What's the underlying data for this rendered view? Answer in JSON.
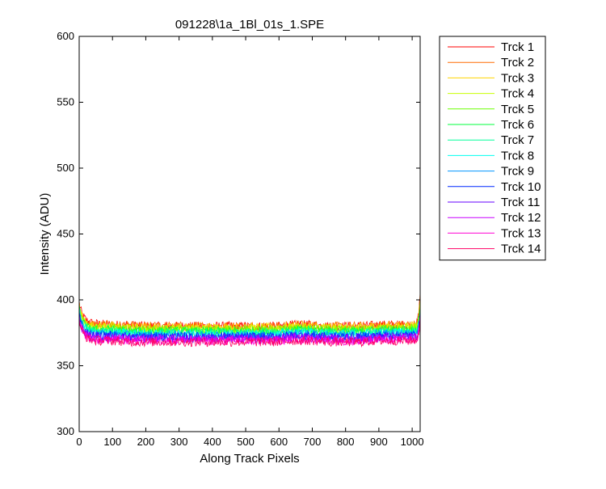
{
  "chart_data": {
    "type": "line",
    "title": "091228\\1a_1Bl_01s_1.SPE",
    "xlabel": "Along Track Pixels",
    "ylabel": "Intensity (ADU)",
    "xlim": [
      0,
      1024
    ],
    "ylim": [
      300,
      600
    ],
    "xticks": [
      0,
      100,
      200,
      300,
      400,
      500,
      600,
      700,
      800,
      900,
      1000
    ],
    "yticks": [
      300,
      350,
      400,
      450,
      500,
      550,
      600
    ],
    "grid": false,
    "legend_position": "outside-right",
    "x": [
      0,
      5,
      10,
      20,
      30,
      50,
      100,
      150,
      200,
      250,
      300,
      350,
      400,
      450,
      500,
      550,
      600,
      650,
      700,
      750,
      800,
      850,
      900,
      950,
      1000,
      1015,
      1020,
      1024
    ],
    "series": [
      {
        "name": "Trck 1",
        "color": "#ff0000",
        "values": [
          398,
          392,
          388,
          385,
          383,
          382,
          381,
          381,
          380,
          380,
          380,
          380,
          380,
          380,
          380,
          380,
          380,
          381,
          381,
          380,
          380,
          380,
          381,
          381,
          381,
          382,
          390,
          404
        ]
      },
      {
        "name": "Trck 2",
        "color": "#ff6a00",
        "values": [
          397,
          391,
          387,
          384,
          382,
          381,
          381,
          380,
          380,
          380,
          380,
          380,
          380,
          380,
          380,
          380,
          380,
          381,
          381,
          380,
          380,
          380,
          381,
          381,
          381,
          382,
          389,
          403
        ]
      },
      {
        "name": "Trck 3",
        "color": "#ffd200",
        "values": [
          396,
          390,
          386,
          383,
          381,
          380,
          380,
          379,
          379,
          379,
          379,
          379,
          379,
          379,
          379,
          379,
          379,
          380,
          380,
          379,
          379,
          379,
          380,
          380,
          380,
          381,
          387,
          400
        ]
      },
      {
        "name": "Trck 4",
        "color": "#c8ff00",
        "values": [
          395,
          389,
          385,
          382,
          380,
          379,
          379,
          378,
          378,
          378,
          378,
          378,
          378,
          378,
          378,
          378,
          378,
          379,
          379,
          378,
          378,
          378,
          379,
          379,
          379,
          380,
          386,
          398
        ]
      },
      {
        "name": "Trck 5",
        "color": "#6aff00",
        "values": [
          394,
          388,
          384,
          381,
          379,
          378,
          378,
          377,
          377,
          377,
          377,
          377,
          377,
          377,
          377,
          377,
          377,
          378,
          378,
          377,
          377,
          377,
          378,
          378,
          378,
          379,
          385,
          396
        ]
      },
      {
        "name": "Trck 6",
        "color": "#00ff3c",
        "values": [
          393,
          387,
          383,
          380,
          378,
          377,
          377,
          376,
          376,
          376,
          376,
          376,
          376,
          376,
          376,
          376,
          376,
          377,
          377,
          376,
          376,
          376,
          377,
          377,
          377,
          378,
          384,
          394
        ]
      },
      {
        "name": "Trck 7",
        "color": "#00ff9a",
        "values": [
          392,
          386,
          382,
          379,
          377,
          376,
          376,
          375,
          375,
          375,
          375,
          375,
          375,
          375,
          375,
          375,
          375,
          376,
          376,
          375,
          375,
          375,
          376,
          376,
          376,
          377,
          383,
          392
        ]
      },
      {
        "name": "Trck 8",
        "color": "#00fff0",
        "values": [
          391,
          385,
          381,
          378,
          376,
          375,
          375,
          374,
          374,
          374,
          374,
          374,
          374,
          374,
          374,
          374,
          374,
          375,
          375,
          374,
          374,
          374,
          375,
          375,
          375,
          376,
          382,
          390
        ]
      },
      {
        "name": "Trck 9",
        "color": "#0096ff",
        "values": [
          390,
          384,
          380,
          377,
          375,
          374,
          374,
          373,
          373,
          373,
          373,
          373,
          373,
          373,
          373,
          373,
          373,
          374,
          374,
          373,
          373,
          373,
          374,
          374,
          374,
          375,
          381,
          389
        ]
      },
      {
        "name": "Trck 10",
        "color": "#0028ff",
        "values": [
          389,
          383,
          379,
          376,
          374,
          373,
          373,
          372,
          372,
          372,
          372,
          372,
          372,
          372,
          372,
          372,
          372,
          373,
          373,
          372,
          372,
          372,
          373,
          373,
          373,
          374,
          380,
          388
        ]
      },
      {
        "name": "Trck 11",
        "color": "#6400ff",
        "values": [
          388,
          382,
          378,
          375,
          373,
          372,
          372,
          371,
          371,
          371,
          371,
          371,
          371,
          371,
          371,
          371,
          371,
          372,
          372,
          371,
          371,
          371,
          372,
          372,
          372,
          373,
          379,
          387
        ]
      },
      {
        "name": "Trck 12",
        "color": "#c800ff",
        "values": [
          387,
          381,
          377,
          374,
          372,
          371,
          371,
          370,
          370,
          370,
          370,
          370,
          370,
          370,
          370,
          370,
          370,
          371,
          371,
          370,
          370,
          370,
          371,
          371,
          371,
          372,
          378,
          386
        ]
      },
      {
        "name": "Trck 13",
        "color": "#ff00d2",
        "values": [
          386,
          380,
          376,
          373,
          371,
          370,
          370,
          369,
          369,
          369,
          369,
          369,
          369,
          369,
          369,
          369,
          369,
          370,
          370,
          369,
          369,
          369,
          370,
          370,
          370,
          371,
          377,
          385
        ]
      },
      {
        "name": "Trck 14",
        "color": "#ff0064",
        "values": [
          385,
          379,
          375,
          372,
          370,
          369,
          369,
          368,
          368,
          368,
          368,
          368,
          368,
          368,
          368,
          368,
          368,
          369,
          369,
          368,
          368,
          368,
          369,
          369,
          369,
          370,
          376,
          384
        ]
      }
    ]
  }
}
